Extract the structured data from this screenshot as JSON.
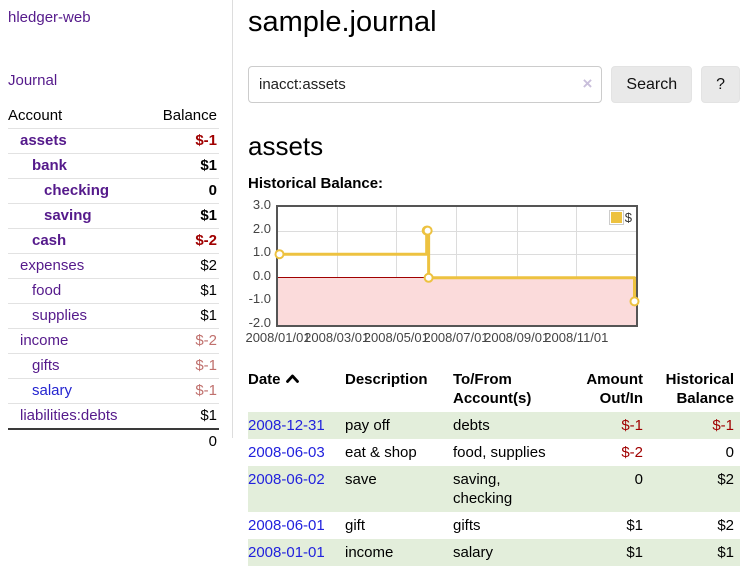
{
  "colors": {
    "link_purple": "#551a8b",
    "link_blue": "#2525d0",
    "date_blue": "#2222dd",
    "negative_strong": "#a00000",
    "negative_soft": "#c0706d",
    "row_green": "#e3eedb",
    "chart_line": "#edc240",
    "chart_negative_fill": "#fbdbdb",
    "chart_zero_line": "#a00000",
    "chart_border": "#555555",
    "chart_grid": "#dcdcdc"
  },
  "sidebar": {
    "brand": "hledger-web",
    "nav": {
      "journal": "Journal"
    },
    "table": {
      "headers": {
        "account": "Account",
        "balance": "Balance"
      },
      "rows": [
        {
          "label": "assets",
          "depth": 1,
          "bold": true,
          "value": "$-1",
          "value_style": "neg"
        },
        {
          "label": "bank",
          "depth": 2,
          "bold": true,
          "value": "$1",
          "value_style": ""
        },
        {
          "label": "checking",
          "depth": 3,
          "bold": true,
          "value": "0",
          "value_style": ""
        },
        {
          "label": "saving",
          "depth": 3,
          "bold": true,
          "value": "$1",
          "value_style": ""
        },
        {
          "label": "cash",
          "depth": 2,
          "bold": true,
          "value": "$-2",
          "value_style": "neg"
        },
        {
          "label": "expenses",
          "depth": 1,
          "bold": false,
          "value": "$2",
          "value_style": ""
        },
        {
          "label": "food",
          "depth": 2,
          "bold": false,
          "value": "$1",
          "value_style": ""
        },
        {
          "label": "supplies",
          "depth": 2,
          "bold": false,
          "value": "$1",
          "value_style": ""
        },
        {
          "label": "income",
          "depth": 1,
          "bold": false,
          "value": "$-2",
          "value_style": "negsoft"
        },
        {
          "label": "gifts",
          "depth": 2,
          "bold": false,
          "value": "$-1",
          "value_style": "negsoft"
        },
        {
          "label": "salary",
          "depth": 2,
          "bold": false,
          "value": "$-1",
          "value_style": "negsoft",
          "link": "blue"
        },
        {
          "label": "liabilities:debts",
          "depth": 1,
          "bold": false,
          "value": "$1",
          "value_style": ""
        }
      ],
      "total": "0"
    }
  },
  "main": {
    "title": "sample.journal",
    "search": {
      "value": "inacct:assets",
      "clear": "×",
      "button": "Search",
      "help": "?"
    },
    "account_heading": "assets",
    "chart_heading": "Historical Balance:"
  },
  "chart_data": {
    "type": "line",
    "step": true,
    "title": "Historical Balance",
    "legend_label": "$",
    "legend_position": "top-right",
    "ylim": [
      -2,
      3
    ],
    "xrange": [
      "2008-01-01",
      "2009-01-01"
    ],
    "ytick_labels": [
      "3.0",
      "2.0",
      "1.0",
      "0.0",
      "-1.0",
      "-2.0"
    ],
    "ytick_values": [
      3,
      2,
      1,
      0,
      -1,
      -2
    ],
    "xtick_labels": [
      "2008/01/01",
      "2008/03/01",
      "2008/05/01",
      "2008/07/01",
      "2008/09/01",
      "2008/11/01"
    ],
    "xtick_dates": [
      "2008-01-01",
      "2008-03-01",
      "2008-05-01",
      "2008-07-01",
      "2008-09-01",
      "2008-11-01"
    ],
    "grid": true,
    "negative_region_shaded": true,
    "series": [
      {
        "name": "$",
        "points": [
          {
            "date": "2008-01-01",
            "value": 1
          },
          {
            "date": "2008-06-01",
            "value": 2
          },
          {
            "date": "2008-06-02",
            "value": 2
          },
          {
            "date": "2008-06-03",
            "value": 0
          },
          {
            "date": "2008-12-31",
            "value": -1
          }
        ]
      }
    ]
  },
  "transactions": {
    "headers": {
      "date": "Date",
      "description": "Description",
      "tofrom1": "To/From",
      "tofrom2": "Account(s)",
      "amount1": "Amount",
      "amount2": "Out/In",
      "hist1": "Historical",
      "hist2": "Balance"
    },
    "rows": [
      {
        "date": "2008-12-31",
        "description": "pay off",
        "account_lines": [
          "debts"
        ],
        "amount": "$-1",
        "amount_neg": true,
        "balance": "$-1",
        "balance_neg": true
      },
      {
        "date": "2008-06-03",
        "description": "eat & shop",
        "account_lines": [
          "food, supplies"
        ],
        "amount": "$-2",
        "amount_neg": true,
        "balance": "0",
        "balance_neg": false
      },
      {
        "date": "2008-06-02",
        "description": "save",
        "account_lines": [
          "saving,",
          "checking"
        ],
        "amount": "0",
        "amount_neg": false,
        "balance": "$2",
        "balance_neg": false
      },
      {
        "date": "2008-06-01",
        "description": "gift",
        "account_lines": [
          "gifts"
        ],
        "amount": "$1",
        "amount_neg": false,
        "balance": "$2",
        "balance_neg": false
      },
      {
        "date": "2008-01-01",
        "description": "income",
        "account_lines": [
          "salary"
        ],
        "amount": "$1",
        "amount_neg": false,
        "balance": "$1",
        "balance_neg": false
      }
    ]
  }
}
